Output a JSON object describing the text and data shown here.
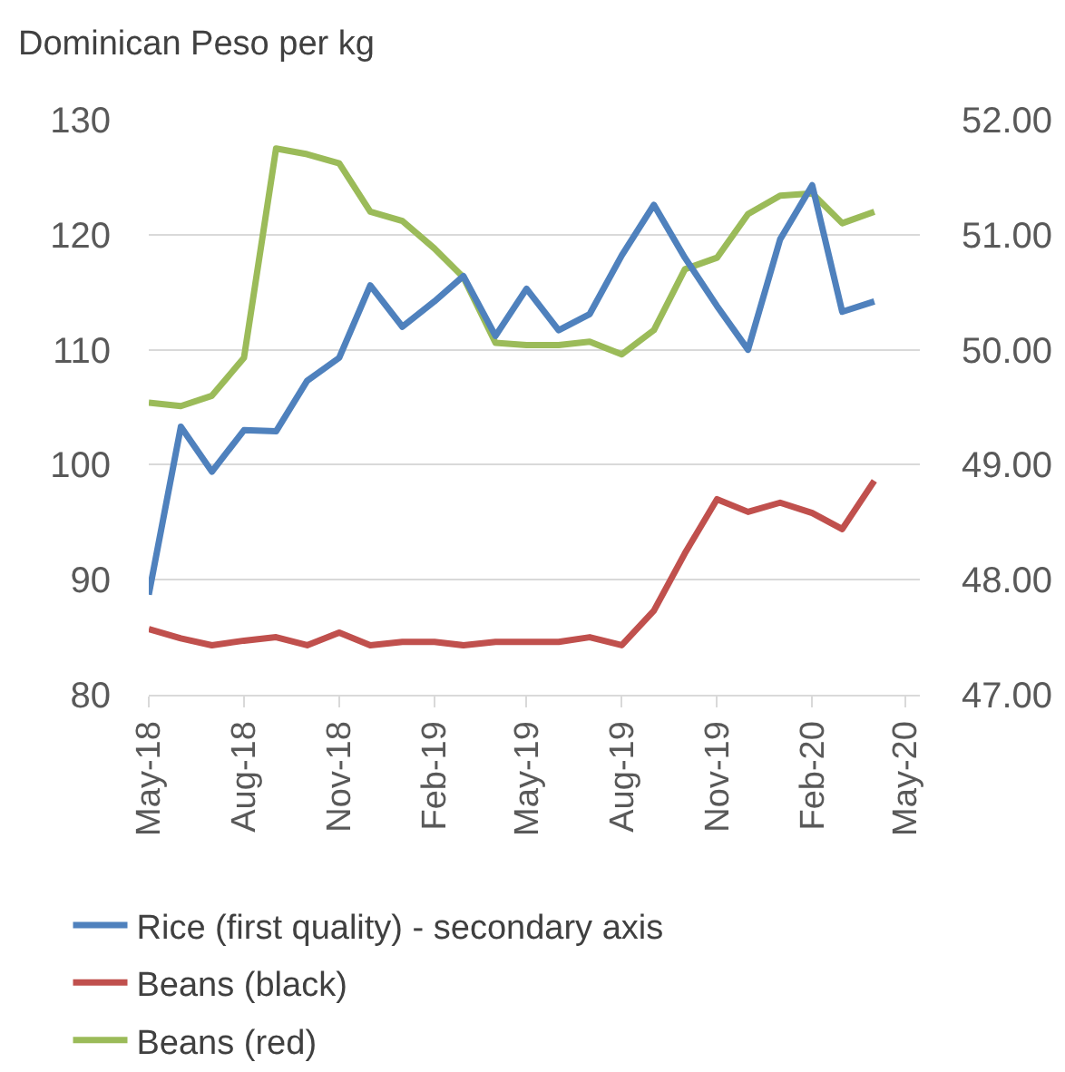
{
  "chart_data": {
    "type": "line",
    "ylabel": "Dominican Peso per kg",
    "x": [
      "2018-05",
      "2018-06",
      "2018-07",
      "2018-08",
      "2018-09",
      "2018-10",
      "2018-11",
      "2018-12",
      "2019-01",
      "2019-02",
      "2019-03",
      "2019-04",
      "2019-05",
      "2019-06",
      "2019-07",
      "2019-08",
      "2019-09",
      "2019-10",
      "2019-11",
      "2019-12",
      "2020-01",
      "2020-02",
      "2020-03",
      "2020-04"
    ],
    "series": [
      {
        "name": "Rice (first quality) - secondary axis",
        "color": "#4f81bd",
        "axis": "y2",
        "values": [
          47.87,
          49.33,
          48.94,
          49.3,
          49.29,
          49.73,
          49.93,
          50.56,
          50.2,
          50.42,
          50.64,
          50.12,
          50.53,
          50.17,
          50.31,
          50.82,
          51.26,
          50.8,
          50.38,
          50.0,
          50.96,
          51.43,
          50.33,
          50.42
        ]
      },
      {
        "name": "Beans (black)",
        "color": "#c0504d",
        "values": [
          85.7,
          84.9,
          84.3,
          84.7,
          85.0,
          84.3,
          85.4,
          84.3,
          84.6,
          84.6,
          84.3,
          84.6,
          84.6,
          84.6,
          85.0,
          84.3,
          87.3,
          92.3,
          97.0,
          95.9,
          96.7,
          95.8,
          94.4,
          98.6
        ]
      },
      {
        "name": "Beans (red)",
        "color": "#9bbb59",
        "values": [
          105.4,
          105.1,
          106.0,
          109.3,
          127.5,
          127.0,
          126.2,
          122.0,
          121.2,
          118.8,
          116.3,
          110.6,
          110.4,
          110.4,
          110.7,
          109.6,
          111.7,
          117.0,
          118.0,
          121.8,
          123.4,
          123.6,
          121.0,
          122.0
        ]
      }
    ],
    "xlim": [
      "2018-05",
      "2020-05-15"
    ],
    "xticks": [
      {
        "value": "2018-05",
        "label": "May-18"
      },
      {
        "value": "2018-08",
        "label": "Aug-18"
      },
      {
        "value": "2018-11",
        "label": "Nov-18"
      },
      {
        "value": "2019-02",
        "label": "Feb-19"
      },
      {
        "value": "2019-05",
        "label": "May-19"
      },
      {
        "value": "2019-08",
        "label": "Aug-19"
      },
      {
        "value": "2019-11",
        "label": "Nov-19"
      },
      {
        "value": "2020-02",
        "label": "Feb-20"
      },
      {
        "value": "2020-05",
        "label": "May-20"
      }
    ],
    "ylim": [
      80,
      130
    ],
    "yticks": [
      80,
      90,
      100,
      110,
      120,
      130
    ],
    "y2lim": [
      47,
      52
    ],
    "y2ticks": [
      {
        "value": 47,
        "label": "47.00"
      },
      {
        "value": 48,
        "label": "48.00"
      },
      {
        "value": 49,
        "label": "49.00"
      },
      {
        "value": 50,
        "label": "50.00"
      },
      {
        "value": 51,
        "label": "51.00"
      },
      {
        "value": 52,
        "label": "52.00"
      }
    ],
    "grid": "y",
    "legend": "bottom"
  }
}
